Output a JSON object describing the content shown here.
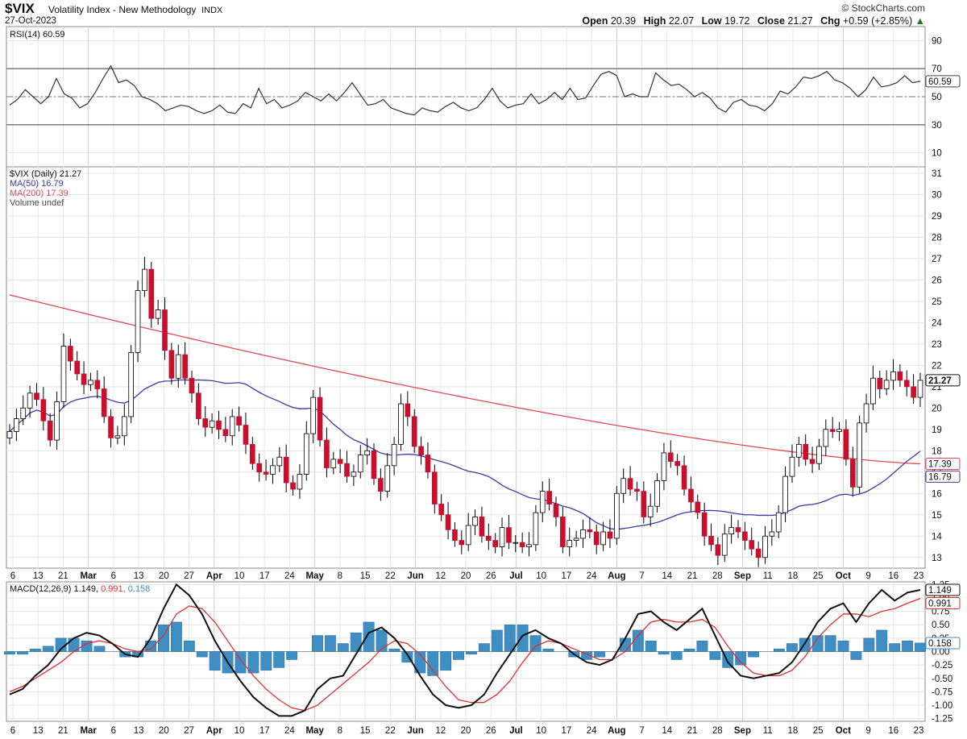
{
  "header": {
    "symbol": "$VIX",
    "description": "Volatility Index - New Methodology",
    "exchange": "INDX",
    "date": "27-Oct-2023",
    "brand": "© StockCharts.com",
    "open_label": "Open",
    "open": "20.39",
    "high_label": "High",
    "high": "22.07",
    "low_label": "Low",
    "low": "19.72",
    "close_label": "Close",
    "close": "21.27",
    "chg_label": "Chg",
    "chg": "+0.59 (+2.85%)",
    "chg_arrow": "▲"
  },
  "colors": {
    "up_candle": "#ffffff",
    "down_candle": "#c8102e",
    "candle_outline": "#000000",
    "ma50": "#3a3aa8",
    "ma200": "#e04a55",
    "macd": "#111111",
    "signal": "#e03030",
    "histogram": "#3e8ec4"
  },
  "chart_data": [
    {
      "type": "line",
      "panel": "indicator",
      "legend": "RSI(14) 60.59",
      "yticks": [
        10,
        30,
        50,
        70,
        90
      ],
      "ylim": [
        0,
        100
      ],
      "last_value_label": "60.59",
      "series": [
        {
          "name": "RSI(14)",
          "values": [
            44,
            48,
            55,
            50,
            45,
            50,
            63,
            52,
            49,
            42,
            45,
            53,
            63,
            72,
            60,
            62,
            58,
            50,
            48,
            45,
            40,
            42,
            44,
            43,
            40,
            38,
            40,
            44,
            39,
            38,
            45,
            42,
            56,
            45,
            48,
            42,
            44,
            47,
            53,
            50,
            47,
            52,
            47,
            53,
            60,
            52,
            44,
            45,
            48,
            42,
            40,
            38,
            37,
            42,
            40,
            39,
            43,
            46,
            42,
            40,
            42,
            48,
            56,
            47,
            42,
            44,
            45,
            52,
            45,
            48,
            53,
            48,
            56,
            48,
            49,
            58,
            66,
            68,
            65,
            50,
            52,
            50,
            50,
            67,
            62,
            58,
            59,
            55,
            50,
            53,
            49,
            42,
            39,
            46,
            48,
            44,
            43,
            40,
            45,
            54,
            52,
            57,
            64,
            63,
            65,
            68,
            62,
            60,
            56,
            50,
            55,
            64,
            57,
            58,
            60,
            65,
            60,
            61
          ]
        }
      ],
      "reference_lines": [
        30,
        50,
        70
      ],
      "x_dates_note": ""
    },
    {
      "type": "candlestick",
      "panel": "price",
      "legend": [
        "$VIX (Daily) 21.27",
        "MA(50) 16.79",
        "MA(200) 17.39",
        "Volume undef"
      ],
      "yticks": [
        13,
        14,
        15,
        16,
        17,
        18,
        19,
        20,
        21,
        22,
        23,
        24,
        25,
        26,
        27,
        28,
        29,
        30,
        31
      ],
      "ylim": [
        12.5,
        31.3
      ],
      "last_price_label": "21.27",
      "ma50_label": "16.79",
      "ma200_label": "17.39",
      "closes": [
        18.9,
        19.5,
        20.0,
        20.7,
        20.4,
        19.4,
        18.5,
        20.3,
        22.9,
        22.2,
        21.6,
        21.1,
        21.3,
        20.9,
        19.6,
        18.6,
        18.7,
        19.6,
        22.6,
        25.5,
        26.5,
        24.2,
        24.6,
        22.7,
        21.4,
        22.5,
        21.4,
        20.7,
        19.5,
        19.1,
        19.4,
        19.0,
        18.7,
        19.6,
        19.2,
        18.3,
        17.4,
        17.0,
        16.9,
        17.3,
        17.7,
        16.5,
        16.2,
        16.9,
        18.8,
        20.5,
        18.5,
        17.2,
        17.6,
        17.4,
        16.8,
        17.0,
        17.8,
        18.0,
        16.7,
        16.1,
        17.3,
        18.3,
        20.2,
        19.6,
        18.2,
        17.8,
        17.0,
        15.5,
        15.0,
        14.3,
        13.8,
        13.6,
        14.5,
        14.9,
        14.0,
        13.8,
        13.5,
        14.4,
        13.7,
        13.7,
        13.5,
        13.6,
        15.1,
        16.1,
        15.5,
        14.9,
        13.5,
        13.8,
        13.9,
        14.3,
        14.2,
        13.6,
        14.2,
        13.9,
        16.0,
        16.7,
        16.2,
        16.1,
        14.9,
        15.4,
        16.6,
        17.9,
        17.5,
        17.3,
        16.2,
        15.6,
        15.1,
        14.0,
        13.6,
        13.1,
        14.1,
        14.4,
        14.2,
        13.8,
        13.4,
        13.0,
        14.0,
        14.2,
        15.1,
        16.8,
        17.7,
        18.3,
        17.6,
        17.4,
        18.2,
        19.0,
        18.9,
        19.0,
        17.6,
        16.3,
        19.3,
        20.2,
        21.4,
        20.9,
        21.3,
        21.7,
        21.3,
        21.0,
        20.5,
        21.3
      ]
    },
    {
      "type": "line",
      "panel": "indicator",
      "legend": "MACD(12,26,9)",
      "legend_macd_value": "1.149",
      "legend_signal_value": "0.991",
      "legend_hist_value": "0.158",
      "yticks": [
        "1.25",
        "1.00",
        "0.75",
        "0.50",
        "0.25",
        "0.00",
        "-0.25",
        "-0.50",
        "-0.75",
        "-1.00",
        "-1.25"
      ],
      "ylim": [
        -1.3,
        1.3
      ],
      "last_value_labels": [
        "1.149",
        "0.991",
        "0.158"
      ],
      "series": [
        {
          "name": "MACD",
          "values": [
            -0.8,
            -0.7,
            -0.45,
            -0.25,
            0.05,
            0.25,
            0.35,
            0.3,
            0.15,
            -0.05,
            -0.1,
            0.25,
            0.8,
            1.25,
            1.05,
            0.7,
            0.2,
            -0.2,
            -0.55,
            -0.85,
            -1.05,
            -1.2,
            -1.2,
            -1.1,
            -0.7,
            -0.5,
            -0.45,
            -0.05,
            0.35,
            0.45,
            0.25,
            -0.05,
            -0.45,
            -0.8,
            -1.0,
            -1.05,
            -1.0,
            -0.8,
            -0.4,
            -0.05,
            0.3,
            0.4,
            0.25,
            0.15,
            -0.05,
            -0.2,
            -0.25,
            -0.15,
            0.25,
            0.7,
            0.75,
            0.55,
            0.4,
            0.6,
            0.8,
            0.3,
            -0.2,
            -0.45,
            -0.5,
            -0.45,
            -0.4,
            -0.2,
            0.15,
            0.55,
            0.8,
            0.9,
            0.55,
            0.9,
            1.15,
            0.95,
            1.1,
            1.15
          ]
        },
        {
          "name": "Signal",
          "values": [
            -0.75,
            -0.65,
            -0.5,
            -0.35,
            -0.2,
            0.0,
            0.15,
            0.2,
            0.15,
            0.05,
            0.0,
            0.05,
            0.3,
            0.7,
            0.85,
            0.8,
            0.55,
            0.2,
            -0.15,
            -0.45,
            -0.7,
            -0.9,
            -1.05,
            -1.1,
            -1.0,
            -0.8,
            -0.6,
            -0.4,
            -0.2,
            0.05,
            0.2,
            0.15,
            -0.05,
            -0.35,
            -0.65,
            -0.9,
            -0.95,
            -0.95,
            -0.8,
            -0.55,
            -0.2,
            0.1,
            0.2,
            0.15,
            0.05,
            -0.05,
            -0.15,
            -0.15,
            0.0,
            0.3,
            0.55,
            0.6,
            0.55,
            0.55,
            0.6,
            0.45,
            0.1,
            -0.2,
            -0.4,
            -0.45,
            -0.45,
            -0.35,
            -0.1,
            0.25,
            0.5,
            0.7,
            0.7,
            0.65,
            0.75,
            0.8,
            0.9,
            0.99
          ]
        }
      ],
      "histogram": [
        -0.05,
        -0.05,
        0.05,
        0.1,
        0.25,
        0.25,
        0.2,
        0.1,
        0.0,
        -0.1,
        -0.1,
        0.2,
        0.5,
        0.55,
        0.2,
        -0.1,
        -0.35,
        -0.4,
        -0.4,
        -0.4,
        -0.35,
        -0.3,
        -0.15,
        0.0,
        0.3,
        0.3,
        0.15,
        0.35,
        0.55,
        0.4,
        0.05,
        -0.2,
        -0.4,
        -0.45,
        -0.35,
        -0.15,
        -0.05,
        0.15,
        0.4,
        0.5,
        0.5,
        0.3,
        0.05,
        0.0,
        -0.1,
        -0.15,
        -0.1,
        0.0,
        0.25,
        0.4,
        0.2,
        -0.05,
        -0.15,
        0.05,
        0.2,
        -0.15,
        -0.3,
        -0.25,
        -0.1,
        0.0,
        0.05,
        0.15,
        0.25,
        0.3,
        0.3,
        0.2,
        -0.15,
        0.25,
        0.4,
        0.15,
        0.2,
        0.16
      ]
    }
  ],
  "x_axis": {
    "labels": [
      {
        "text": "6",
        "major": false
      },
      {
        "text": "13",
        "major": false
      },
      {
        "text": "21",
        "major": false
      },
      {
        "text": "Mar",
        "major": true
      },
      {
        "text": "6",
        "major": false
      },
      {
        "text": "13",
        "major": false
      },
      {
        "text": "20",
        "major": false
      },
      {
        "text": "27",
        "major": false
      },
      {
        "text": "Apr",
        "major": true
      },
      {
        "text": "10",
        "major": false
      },
      {
        "text": "17",
        "major": false
      },
      {
        "text": "24",
        "major": false
      },
      {
        "text": "May",
        "major": true
      },
      {
        "text": "8",
        "major": false
      },
      {
        "text": "15",
        "major": false
      },
      {
        "text": "22",
        "major": false
      },
      {
        "text": "Jun",
        "major": true
      },
      {
        "text": "12",
        "major": false
      },
      {
        "text": "20",
        "major": false
      },
      {
        "text": "26",
        "major": false
      },
      {
        "text": "Jul",
        "major": true
      },
      {
        "text": "10",
        "major": false
      },
      {
        "text": "17",
        "major": false
      },
      {
        "text": "24",
        "major": false
      },
      {
        "text": "Aug",
        "major": true
      },
      {
        "text": "7",
        "major": false
      },
      {
        "text": "14",
        "major": false
      },
      {
        "text": "21",
        "major": false
      },
      {
        "text": "28",
        "major": false
      },
      {
        "text": "Sep",
        "major": true
      },
      {
        "text": "11",
        "major": false
      },
      {
        "text": "18",
        "major": false
      },
      {
        "text": "25",
        "major": false
      },
      {
        "text": "Oct",
        "major": true
      },
      {
        "text": "9",
        "major": false
      },
      {
        "text": "16",
        "major": false
      },
      {
        "text": "23",
        "major": false
      }
    ]
  }
}
